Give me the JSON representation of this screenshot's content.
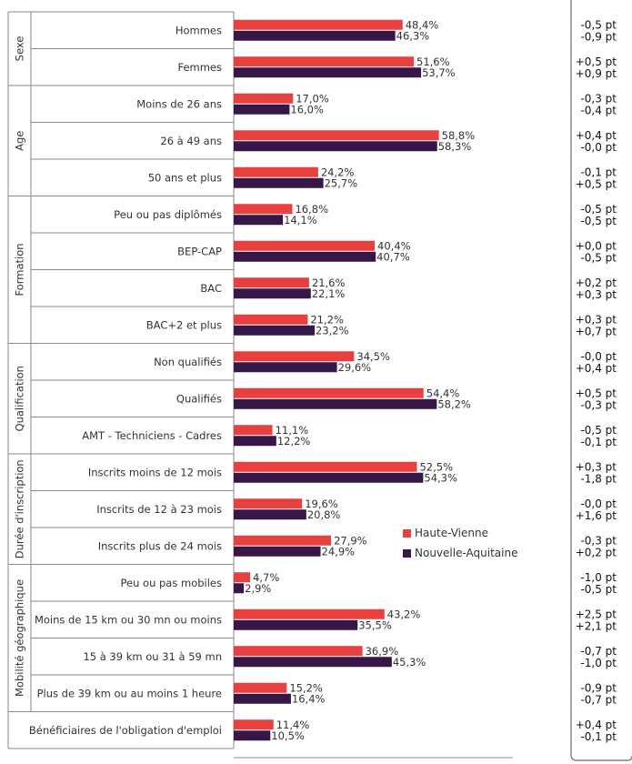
{
  "chart_data": {
    "type": "bar",
    "orientation": "horizontal",
    "xlim": [
      0,
      80
    ],
    "x_ticks": [
      "0%",
      "20%",
      "40%",
      "60%",
      "80%"
    ],
    "grid": false,
    "legend_position": "lower-middle",
    "series": [
      {
        "name": "Haute-Vienne",
        "color": "#e8403f"
      },
      {
        "name": "Nouvelle-Aquitaine",
        "color": "#361748"
      }
    ],
    "groups": [
      {
        "label": "Sexe",
        "categories": [
          {
            "label": "Hommes",
            "values": [
              48.4,
              46.3
            ],
            "value_labels": [
              "48,4%",
              "46,3%"
            ],
            "deltas": [
              "-0,5 pt",
              "-0,9 pt"
            ]
          },
          {
            "label": "Femmes",
            "values": [
              51.6,
              53.7
            ],
            "value_labels": [
              "51,6%",
              "53,7%"
            ],
            "deltas": [
              "+0,5 pt",
              "+0,9 pt"
            ]
          }
        ]
      },
      {
        "label": "Age",
        "categories": [
          {
            "label": "Moins de 26 ans",
            "values": [
              17.0,
              16.0
            ],
            "value_labels": [
              "17,0%",
              "16,0%"
            ],
            "deltas": [
              "-0,3 pt",
              "-0,4 pt"
            ]
          },
          {
            "label": "26 à 49 ans",
            "values": [
              58.8,
              58.3
            ],
            "value_labels": [
              "58,8%",
              "58,3%"
            ],
            "deltas": [
              "+0,4 pt",
              "-0,0 pt"
            ]
          },
          {
            "label": "50 ans et plus",
            "values": [
              24.2,
              25.7
            ],
            "value_labels": [
              "24,2%",
              "25,7%"
            ],
            "deltas": [
              "-0,1 pt",
              "+0,5 pt"
            ]
          }
        ]
      },
      {
        "label": "Formation",
        "categories": [
          {
            "label": "Peu ou pas diplômés",
            "values": [
              16.8,
              14.1
            ],
            "value_labels": [
              "16,8%",
              "14,1%"
            ],
            "deltas": [
              "-0,5 pt",
              "-0,5 pt"
            ]
          },
          {
            "label": "BEP-CAP",
            "values": [
              40.4,
              40.7
            ],
            "value_labels": [
              "40,4%",
              "40,7%"
            ],
            "deltas": [
              "+0,0 pt",
              "-0,5 pt"
            ]
          },
          {
            "label": "BAC",
            "values": [
              21.6,
              22.1
            ],
            "value_labels": [
              "21,6%",
              "22,1%"
            ],
            "deltas": [
              "+0,2 pt",
              "+0,3 pt"
            ]
          },
          {
            "label": "BAC+2 et plus",
            "values": [
              21.2,
              23.2
            ],
            "value_labels": [
              "21,2%",
              "23,2%"
            ],
            "deltas": [
              "+0,3 pt",
              "+0,7 pt"
            ]
          }
        ]
      },
      {
        "label": "Qualification",
        "categories": [
          {
            "label": "Non qualifiés",
            "values": [
              34.5,
              29.6
            ],
            "value_labels": [
              "34,5%",
              "29,6%"
            ],
            "deltas": [
              "-0,0 pt",
              "+0,4 pt"
            ]
          },
          {
            "label": "Qualifiés",
            "values": [
              54.4,
              58.2
            ],
            "value_labels": [
              "54,4%",
              "58,2%"
            ],
            "deltas": [
              "+0,5 pt",
              "-0,3 pt"
            ]
          },
          {
            "label": "AMT - Techniciens - Cadres",
            "values": [
              11.1,
              12.2
            ],
            "value_labels": [
              "11,1%",
              "12,2%"
            ],
            "deltas": [
              "-0,5 pt",
              "-0,1 pt"
            ]
          }
        ]
      },
      {
        "label": "Durée d'inscription",
        "categories": [
          {
            "label": "Inscrits moins de 12 mois",
            "values": [
              52.5,
              54.3
            ],
            "value_labels": [
              "52,5%",
              "54,3%"
            ],
            "deltas": [
              "+0,3 pt",
              "-1,8 pt"
            ]
          },
          {
            "label": "Inscrits de 12 à 23 mois",
            "values": [
              19.6,
              20.8
            ],
            "value_labels": [
              "19,6%",
              "20,8%"
            ],
            "deltas": [
              "-0,0 pt",
              "+1,6 pt"
            ]
          },
          {
            "label": "Inscrits plus de 24 mois",
            "values": [
              27.9,
              24.9
            ],
            "value_labels": [
              "27,9%",
              "24,9%"
            ],
            "deltas": [
              "-0,3 pt",
              "+0,2 pt"
            ]
          }
        ]
      },
      {
        "label": "Mobilité géographique",
        "categories": [
          {
            "label": "Peu ou pas mobiles",
            "values": [
              4.7,
              2.9
            ],
            "value_labels": [
              "4,7%",
              "2,9%"
            ],
            "deltas": [
              "-1,0 pt",
              "-0,5 pt"
            ]
          },
          {
            "label": "Moins de 15 km ou 30 mn ou moins",
            "values": [
              43.2,
              35.5
            ],
            "value_labels": [
              "43,2%",
              "35,5%"
            ],
            "deltas": [
              "+2,5 pt",
              "+2,1 pt"
            ]
          },
          {
            "label": "15 à 39 km ou 31 à 59 mn",
            "values": [
              36.9,
              45.3
            ],
            "value_labels": [
              "36,9%",
              "45,3%"
            ],
            "deltas": [
              "-0,7 pt",
              "-1,0 pt"
            ]
          },
          {
            "label": "Plus de 39 km ou au moins 1 heure",
            "values": [
              15.2,
              16.4
            ],
            "value_labels": [
              "15,2%",
              "16,4%"
            ],
            "deltas": [
              "-0,9 pt",
              "-0,7 pt"
            ]
          }
        ]
      },
      {
        "label": "",
        "categories": [
          {
            "label": "Bénéficiaires de l'obligation d'emploi",
            "values": [
              11.4,
              10.5
            ],
            "value_labels": [
              "11,4%",
              "10,5%"
            ],
            "deltas": [
              "+0,4 pt",
              "-0,1 pt"
            ]
          }
        ]
      }
    ]
  }
}
